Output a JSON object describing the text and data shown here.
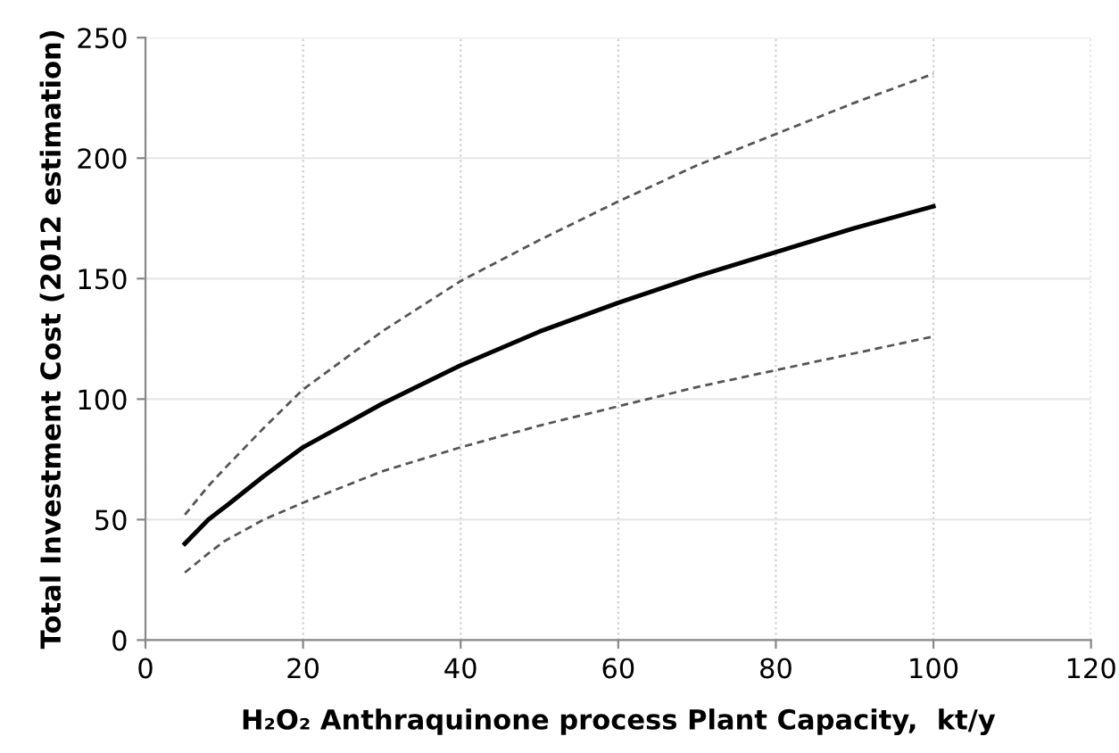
{
  "chart_data": {
    "type": "line",
    "xlabel": "H₂O₂ Anthraquinone process Plant Capacity,  kt/y",
    "ylabel": "Total Investment Cost (2012 estimation)",
    "x": [
      5,
      8,
      10,
      15,
      20,
      30,
      40,
      50,
      60,
      70,
      80,
      90,
      100
    ],
    "series": [
      {
        "color": "#555555",
        "line_style": "dashed",
        "values": [
          52,
          64,
          71,
          88,
          104,
          128,
          149,
          166,
          182,
          197,
          210,
          223,
          235
        ]
      },
      {
        "color": "#000000",
        "line_style": "solid",
        "values": [
          40,
          50,
          55,
          68,
          80,
          98,
          114,
          128,
          140,
          151,
          161,
          171,
          180
        ]
      },
      {
        "color": "#555555",
        "line_style": "dashed",
        "values": [
          28,
          36,
          41,
          50,
          57,
          70,
          80,
          89,
          97,
          105,
          112,
          119,
          126
        ]
      }
    ],
    "xlim": [
      0,
      120
    ],
    "ylim": [
      0,
      250
    ],
    "xticks": [
      0,
      20,
      40,
      60,
      80,
      100,
      120
    ],
    "yticks": [
      0,
      50,
      100,
      150,
      200,
      250
    ],
    "grid": true,
    "marker": "none"
  }
}
